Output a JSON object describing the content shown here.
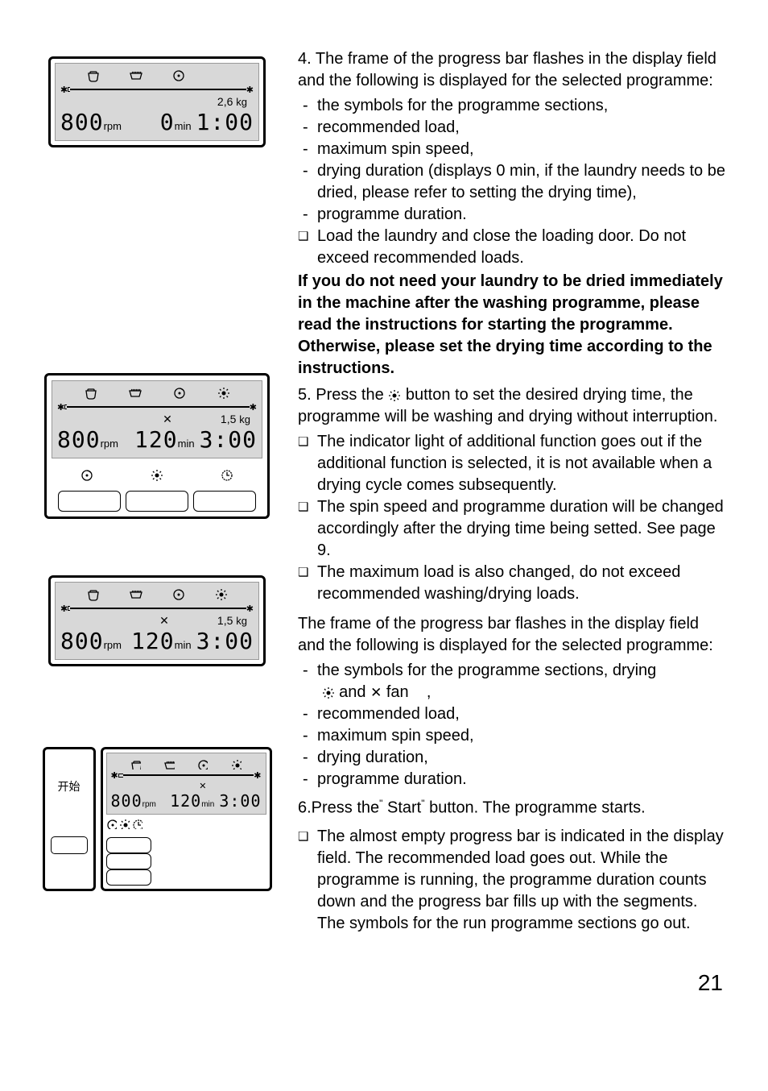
{
  "display1": {
    "rpm_value": "800",
    "rpm_unit": "rpm",
    "min_value": "0",
    "min_unit": "min",
    "load": "2,6",
    "load_unit": "kg",
    "time": "1:00"
  },
  "display2": {
    "rpm_value": "800",
    "rpm_unit": "rpm",
    "min_value": "120",
    "min_unit": "min",
    "load": "1,5",
    "load_unit": "kg",
    "time": "3:00",
    "mid_x": "✕"
  },
  "display3": {
    "rpm_value": "800",
    "rpm_unit": "rpm",
    "min_value": "120",
    "min_unit": "min",
    "load": "1,5",
    "load_unit": "kg",
    "time": "3:00",
    "mid_x": "✕"
  },
  "display4": {
    "rpm_value": "800",
    "rpm_unit": "rpm",
    "min_value": "120",
    "min_unit": "min",
    "time": "3:00",
    "mid_x": "✕"
  },
  "start_label": "开始",
  "section4": {
    "lead": "4. The frame of the progress bar flashes in the display field and the following is displayed for the selected programme:",
    "items": [
      "the symbols for the programme sections,",
      "recommended load,",
      "maximum spin speed,",
      "drying duration (displays 0 min, if the laundry needs to be dried, please refer to setting the drying time),",
      "programme duration."
    ],
    "box": "Load the laundry and close the loading door. Do not exceed recommended loads.",
    "bold_note": "If you do not need your laundry to be dried immediately in the machine after the washing programme, please read the instructions for starting the programme. Otherwise, please set the drying time according to the instructions."
  },
  "section5": {
    "lead_a": "5. Press the",
    "lead_b": "button to set the desired drying time, the programme will be washing and drying without interruption.",
    "boxes": [
      "The indicator light of additional function goes out if the additional function is selected, it is not available when a drying cycle comes subsequently.",
      "The spin speed and programme duration will be changed accordingly after the drying time being setted. See page 9.",
      "The maximum load is also changed, do not exceed recommended washing/drying loads."
    ]
  },
  "section_mid": {
    "lead": "The frame of the progress bar flashes in the display field and the following is displayed for the selected programme:",
    "item_sym_a": "the symbols for the programme sections, drying",
    "item_sym_b": "and",
    "item_sym_c": "fan",
    "items_rest": [
      "recommended load,",
      "maximum spin speed,",
      "drying duration,",
      "programme duration."
    ]
  },
  "section6": {
    "lead_a": "6.Press the",
    "lead_b": "Start",
    "lead_c": "button. The programme starts.",
    "box": "The almost empty progress bar is indicated in the display field. The recommended load goes out. While the programme is running, the programme duration counts down and the progress bar fills up with the segments. The symbols for the run programme sections go out."
  },
  "page_number": "21",
  "icons": {
    "prewash": "⬯",
    "wash": "▥",
    "spin": "◎",
    "sun": "☀",
    "x": "✕",
    "clock": "◷",
    "comma": ","
  }
}
